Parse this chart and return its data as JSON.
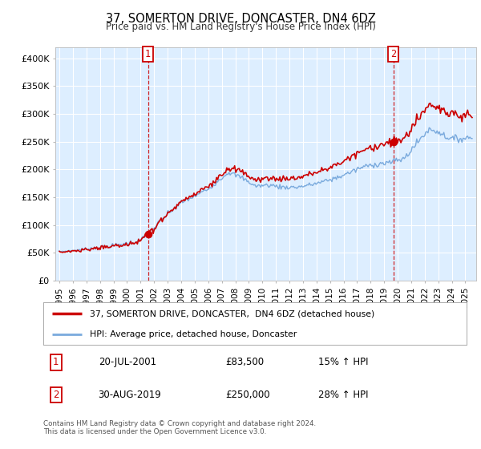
{
  "title": "37, SOMERTON DRIVE, DONCASTER, DN4 6DZ",
  "subtitle": "Price paid vs. HM Land Registry's House Price Index (HPI)",
  "ylim": [
    0,
    420000
  ],
  "yticks": [
    0,
    50000,
    100000,
    150000,
    200000,
    250000,
    300000,
    350000,
    400000
  ],
  "ytick_labels": [
    "£0",
    "£50K",
    "£100K",
    "£150K",
    "£200K",
    "£250K",
    "£300K",
    "£350K",
    "£400K"
  ],
  "background_color": "#ffffff",
  "plot_bg_color": "#ddeeff",
  "grid_color": "#ffffff",
  "sale1_t": 2001.55,
  "sale1_p": 83500,
  "sale2_t": 2019.67,
  "sale2_p": 250000,
  "legend_line1": "37, SOMERTON DRIVE, DONCASTER,  DN4 6DZ (detached house)",
  "legend_line2": "HPI: Average price, detached house, Doncaster",
  "annotation1_date": "20-JUL-2001",
  "annotation1_price": "£83,500",
  "annotation1_hpi": "15% ↑ HPI",
  "annotation2_date": "30-AUG-2019",
  "annotation2_price": "£250,000",
  "annotation2_hpi": "28% ↑ HPI",
  "footer": "Contains HM Land Registry data © Crown copyright and database right 2024.\nThis data is licensed under the Open Government Licence v3.0.",
  "red_color": "#cc0000",
  "blue_color": "#7aaadd",
  "xlim_start": 1994.7,
  "xlim_end": 2025.8,
  "year_start": 1995,
  "year_end": 2025
}
